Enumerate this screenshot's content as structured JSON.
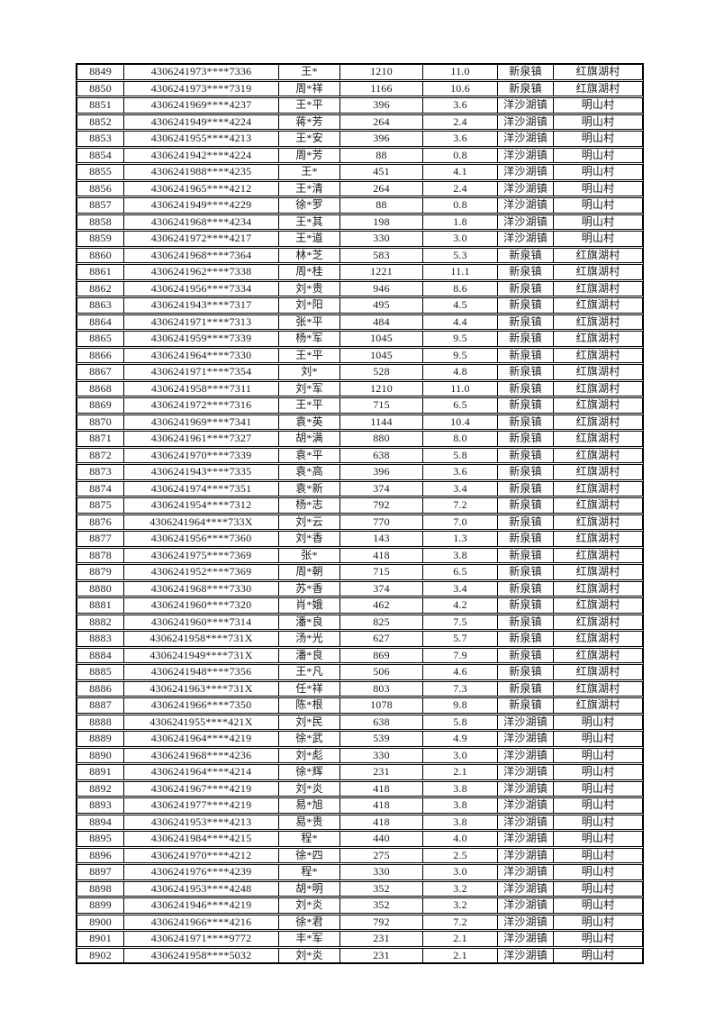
{
  "colors": {
    "page_background": "#ffffff",
    "border": "#000000",
    "text": "#1a1a1a"
  },
  "table": {
    "rows": [
      [
        "8849",
        "4306241973****7336",
        "王*",
        "1210",
        "11.0",
        "新泉镇",
        "红旗湖村"
      ],
      [
        "8850",
        "4306241973****7319",
        "周*祥",
        "1166",
        "10.6",
        "新泉镇",
        "红旗湖村"
      ],
      [
        "8851",
        "4306241969****4237",
        "王*平",
        "396",
        "3.6",
        "洋沙湖镇",
        "明山村"
      ],
      [
        "8852",
        "4306241949****4224",
        "蒋*芳",
        "264",
        "2.4",
        "洋沙湖镇",
        "明山村"
      ],
      [
        "8853",
        "4306241955****4213",
        "王*安",
        "396",
        "3.6",
        "洋沙湖镇",
        "明山村"
      ],
      [
        "8854",
        "4306241942****4224",
        "周*芳",
        "88",
        "0.8",
        "洋沙湖镇",
        "明山村"
      ],
      [
        "8855",
        "4306241988****4235",
        "王*",
        "451",
        "4.1",
        "洋沙湖镇",
        "明山村"
      ],
      [
        "8856",
        "4306241965****4212",
        "王*清",
        "264",
        "2.4",
        "洋沙湖镇",
        "明山村"
      ],
      [
        "8857",
        "4306241949****4229",
        "徐*罗",
        "88",
        "0.8",
        "洋沙湖镇",
        "明山村"
      ],
      [
        "8858",
        "4306241968****4234",
        "王*其",
        "198",
        "1.8",
        "洋沙湖镇",
        "明山村"
      ],
      [
        "8859",
        "4306241972****4217",
        "王*道",
        "330",
        "3.0",
        "洋沙湖镇",
        "明山村"
      ],
      [
        "8860",
        "4306241968****7364",
        "林*芝",
        "583",
        "5.3",
        "新泉镇",
        "红旗湖村"
      ],
      [
        "8861",
        "4306241962****7338",
        "周*桂",
        "1221",
        "11.1",
        "新泉镇",
        "红旗湖村"
      ],
      [
        "8862",
        "4306241956****7334",
        "刘*贵",
        "946",
        "8.6",
        "新泉镇",
        "红旗湖村"
      ],
      [
        "8863",
        "4306241943****7317",
        "刘*阳",
        "495",
        "4.5",
        "新泉镇",
        "红旗湖村"
      ],
      [
        "8864",
        "4306241971****7313",
        "张*平",
        "484",
        "4.4",
        "新泉镇",
        "红旗湖村"
      ],
      [
        "8865",
        "4306241959****7339",
        "杨*军",
        "1045",
        "9.5",
        "新泉镇",
        "红旗湖村"
      ],
      [
        "8866",
        "4306241964****7330",
        "王*平",
        "1045",
        "9.5",
        "新泉镇",
        "红旗湖村"
      ],
      [
        "8867",
        "4306241971****7354",
        "刘*",
        "528",
        "4.8",
        "新泉镇",
        "红旗湖村"
      ],
      [
        "8868",
        "4306241958****7311",
        "刘*军",
        "1210",
        "11.0",
        "新泉镇",
        "红旗湖村"
      ],
      [
        "8869",
        "4306241972****7316",
        "王*平",
        "715",
        "6.5",
        "新泉镇",
        "红旗湖村"
      ],
      [
        "8870",
        "4306241969****7341",
        "袁*英",
        "1144",
        "10.4",
        "新泉镇",
        "红旗湖村"
      ],
      [
        "8871",
        "4306241961****7327",
        "胡*满",
        "880",
        "8.0",
        "新泉镇",
        "红旗湖村"
      ],
      [
        "8872",
        "4306241970****7339",
        "袁*平",
        "638",
        "5.8",
        "新泉镇",
        "红旗湖村"
      ],
      [
        "8873",
        "4306241943****7335",
        "袁*高",
        "396",
        "3.6",
        "新泉镇",
        "红旗湖村"
      ],
      [
        "8874",
        "4306241974****7351",
        "袁*新",
        "374",
        "3.4",
        "新泉镇",
        "红旗湖村"
      ],
      [
        "8875",
        "4306241954****7312",
        "杨*志",
        "792",
        "7.2",
        "新泉镇",
        "红旗湖村"
      ],
      [
        "8876",
        "4306241964****733X",
        "刘*云",
        "770",
        "7.0",
        "新泉镇",
        "红旗湖村"
      ],
      [
        "8877",
        "4306241956****7360",
        "刘*香",
        "143",
        "1.3",
        "新泉镇",
        "红旗湖村"
      ],
      [
        "8878",
        "4306241975****7369",
        "张*",
        "418",
        "3.8",
        "新泉镇",
        "红旗湖村"
      ],
      [
        "8879",
        "4306241952****7369",
        "周*朝",
        "715",
        "6.5",
        "新泉镇",
        "红旗湖村"
      ],
      [
        "8880",
        "4306241968****7330",
        "苏*香",
        "374",
        "3.4",
        "新泉镇",
        "红旗湖村"
      ],
      [
        "8881",
        "4306241960****7320",
        "肖*娥",
        "462",
        "4.2",
        "新泉镇",
        "红旗湖村"
      ],
      [
        "8882",
        "4306241960****7314",
        "潘*良",
        "825",
        "7.5",
        "新泉镇",
        "红旗湖村"
      ],
      [
        "8883",
        "4306241958****731X",
        "汤*光",
        "627",
        "5.7",
        "新泉镇",
        "红旗湖村"
      ],
      [
        "8884",
        "4306241949****731X",
        "潘*良",
        "869",
        "7.9",
        "新泉镇",
        "红旗湖村"
      ],
      [
        "8885",
        "4306241948****7356",
        "王*凡",
        "506",
        "4.6",
        "新泉镇",
        "红旗湖村"
      ],
      [
        "8886",
        "4306241963****731X",
        "任*祥",
        "803",
        "7.3",
        "新泉镇",
        "红旗湖村"
      ],
      [
        "8887",
        "4306241966****7350",
        "陈*根",
        "1078",
        "9.8",
        "新泉镇",
        "红旗湖村"
      ],
      [
        "8888",
        "4306241955****421X",
        "刘*民",
        "638",
        "5.8",
        "洋沙湖镇",
        "明山村"
      ],
      [
        "8889",
        "4306241964****4219",
        "徐*武",
        "539",
        "4.9",
        "洋沙湖镇",
        "明山村"
      ],
      [
        "8890",
        "4306241968****4236",
        "刘*彪",
        "330",
        "3.0",
        "洋沙湖镇",
        "明山村"
      ],
      [
        "8891",
        "4306241964****4214",
        "徐*辉",
        "231",
        "2.1",
        "洋沙湖镇",
        "明山村"
      ],
      [
        "8892",
        "4306241967****4219",
        "刘*炎",
        "418",
        "3.8",
        "洋沙湖镇",
        "明山村"
      ],
      [
        "8893",
        "4306241977****4219",
        "易*旭",
        "418",
        "3.8",
        "洋沙湖镇",
        "明山村"
      ],
      [
        "8894",
        "4306241953****4213",
        "易*贵",
        "418",
        "3.8",
        "洋沙湖镇",
        "明山村"
      ],
      [
        "8895",
        "4306241984****4215",
        "程*",
        "440",
        "4.0",
        "洋沙湖镇",
        "明山村"
      ],
      [
        "8896",
        "4306241970****4212",
        "徐*四",
        "275",
        "2.5",
        "洋沙湖镇",
        "明山村"
      ],
      [
        "8897",
        "4306241976****4239",
        "程*",
        "330",
        "3.0",
        "洋沙湖镇",
        "明山村"
      ],
      [
        "8898",
        "4306241953****4248",
        "胡*明",
        "352",
        "3.2",
        "洋沙湖镇",
        "明山村"
      ],
      [
        "8899",
        "4306241946****4219",
        "刘*炎",
        "352",
        "3.2",
        "洋沙湖镇",
        "明山村"
      ],
      [
        "8900",
        "4306241966****4216",
        "徐*君",
        "792",
        "7.2",
        "洋沙湖镇",
        "明山村"
      ],
      [
        "8901",
        "4306241971****9772",
        "丰*军",
        "231",
        "2.1",
        "洋沙湖镇",
        "明山村"
      ],
      [
        "8902",
        "4306241958****5032",
        "刘*炎",
        "231",
        "2.1",
        "洋沙湖镇",
        "明山村"
      ]
    ]
  }
}
